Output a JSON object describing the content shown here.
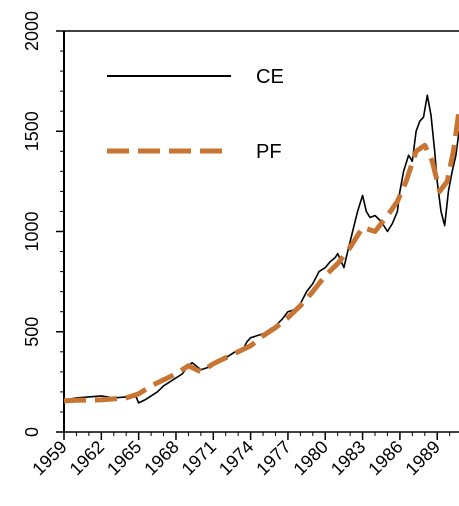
{
  "chart_data": {
    "type": "line",
    "title": "",
    "xlabel": "",
    "ylabel": "",
    "xlim": [
      1959,
      1990.75
    ],
    "ylim": [
      0,
      2000
    ],
    "x_ticks": [
      "1959",
      "1962",
      "1965",
      "1968",
      "1971",
      "1974",
      "1977",
      "1980",
      "1983",
      "1986",
      "1989"
    ],
    "y_ticks": [
      "0",
      "500",
      "1000",
      "1500",
      "2000"
    ],
    "legend_position": "top-left",
    "grid": false,
    "series": [
      {
        "name": "CE",
        "color": "#000000",
        "style": "solid",
        "x": [
          1959,
          1960,
          1961,
          1962,
          1963,
          1964,
          1964.8,
          1965,
          1965.5,
          1966,
          1966.5,
          1967,
          1967.5,
          1968,
          1968.5,
          1969,
          1969.3,
          1969.6,
          1970,
          1970.5,
          1971,
          1971.5,
          1972,
          1972.5,
          1973,
          1973.3,
          1973.7,
          1974,
          1974.5,
          1975,
          1975.5,
          1976,
          1976.5,
          1977,
          1977.5,
          1978,
          1978.5,
          1979,
          1979.5,
          1980,
          1980.4,
          1980.8,
          1981,
          1981.5,
          1981.8,
          1982.2,
          1982.6,
          1983,
          1983.3,
          1983.6,
          1984,
          1984.5,
          1985,
          1985.4,
          1985.8,
          1986,
          1986.3,
          1986.7,
          1987,
          1987.3,
          1987.6,
          1987.9,
          1988.2,
          1988.5,
          1988.8,
          1989,
          1989.3,
          1989.6,
          1989.9,
          1990.2,
          1990.5,
          1990.75
        ],
        "y": [
          160,
          170,
          175,
          180,
          170,
          175,
          175,
          145,
          160,
          180,
          200,
          230,
          250,
          270,
          290,
          330,
          345,
          330,
          310,
          320,
          340,
          350,
          370,
          390,
          410,
          400,
          450,
          470,
          480,
          490,
          510,
          530,
          560,
          600,
          610,
          640,
          700,
          740,
          800,
          820,
          850,
          870,
          890,
          820,
          900,
          1000,
          1100,
          1180,
          1100,
          1070,
          1080,
          1050,
          1000,
          1040,
          1100,
          1200,
          1300,
          1380,
          1350,
          1500,
          1550,
          1570,
          1680,
          1580,
          1400,
          1250,
          1100,
          1030,
          1200,
          1300,
          1380,
          1500
        ]
      },
      {
        "name": "PF",
        "color": "#c87533",
        "style": "dashed",
        "x": [
          1959,
          1960,
          1962,
          1964,
          1965,
          1966,
          1967,
          1968,
          1969,
          1970,
          1971,
          1972,
          1973,
          1974,
          1975,
          1976,
          1977,
          1978,
          1979,
          1980,
          1981,
          1982,
          1983,
          1984,
          1985,
          1985.8,
          1986.5,
          1987.3,
          1988,
          1988.6,
          1989.2,
          1989.8,
          1990.3,
          1990.75
        ],
        "y": [
          155,
          158,
          160,
          170,
          190,
          230,
          260,
          290,
          330,
          300,
          340,
          370,
          400,
          430,
          480,
          520,
          570,
          630,
          700,
          780,
          840,
          920,
          1020,
          1000,
          1080,
          1150,
          1250,
          1400,
          1430,
          1350,
          1200,
          1250,
          1400,
          1600
        ]
      }
    ]
  }
}
